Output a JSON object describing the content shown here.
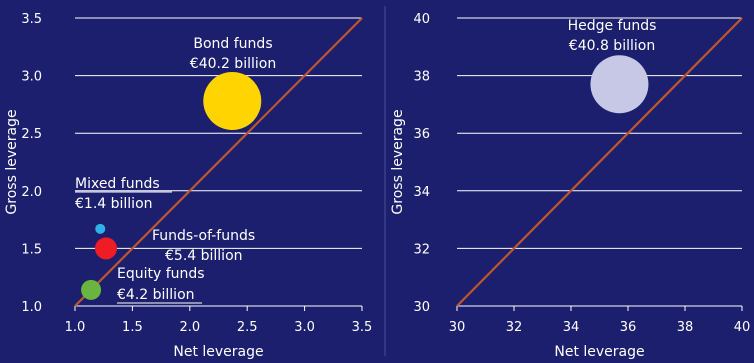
{
  "theme": {
    "background": "#1c1f6e",
    "text": "#ffffff",
    "gridline": "#ffffff",
    "diagonal": "#c0562b",
    "panel_border": "#4a4d98"
  },
  "chart_data": [
    {
      "type": "scatter",
      "xlabel": "Net leverage",
      "ylabel": "Gross leverage",
      "xlim": [
        1.0,
        3.5
      ],
      "ylim": [
        1.0,
        3.5
      ],
      "x_ticks": [
        "1.0",
        "1.5",
        "2.0",
        "2.5",
        "3.0",
        "3.5"
      ],
      "y_ticks": [
        "1.0",
        "1.5",
        "2.0",
        "2.5",
        "3.0",
        "3.5"
      ],
      "grid": "horizontal",
      "diagonal": true,
      "points": [
        {
          "name": "Bond funds",
          "label": "€40.2 billion",
          "x": 2.37,
          "y": 2.78,
          "size": 40.2,
          "color": "#ffd400"
        },
        {
          "name": "Mixed funds",
          "label": "€1.4 billion",
          "x": 1.22,
          "y": 1.67,
          "size": 1.4,
          "color": "#2fb2ea"
        },
        {
          "name": "Funds-of-funds",
          "label": "€5.4 billion",
          "x": 1.27,
          "y": 1.5,
          "size": 5.4,
          "color": "#ee1c25"
        },
        {
          "name": "Equity funds",
          "label": "€4.2 billion",
          "x": 1.14,
          "y": 1.14,
          "size": 4.2,
          "color": "#6ab440"
        }
      ]
    },
    {
      "type": "scatter",
      "xlabel": "Net leverage",
      "ylabel": "Gross leverage",
      "xlim": [
        30,
        40
      ],
      "ylim": [
        30,
        40
      ],
      "x_ticks": [
        "30",
        "32",
        "34",
        "36",
        "38",
        "40"
      ],
      "y_ticks": [
        "30",
        "32",
        "34",
        "36",
        "38",
        "40"
      ],
      "grid": "horizontal",
      "diagonal": true,
      "points": [
        {
          "name": "Hedge funds",
          "label": "€40.8 billion",
          "x": 35.7,
          "y": 37.7,
          "size": 40.8,
          "color": "#c7c8e6"
        }
      ]
    }
  ]
}
